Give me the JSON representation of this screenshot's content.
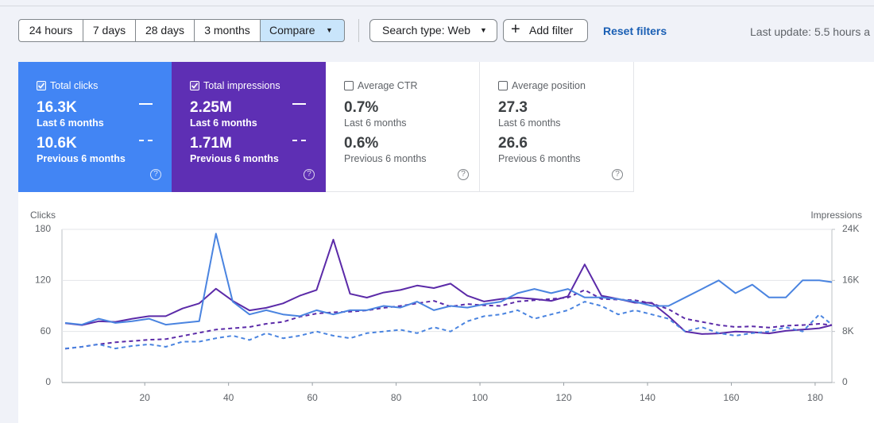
{
  "toolbar": {
    "time_ranges": [
      "24 hours",
      "7 days",
      "28 days",
      "3 months"
    ],
    "compare": "Compare",
    "search_type": "Search type: Web",
    "add_filter": "Add filter",
    "reset_filters": "Reset filters",
    "last_update": "Last update: 5.5 hours a"
  },
  "cards": [
    {
      "title": "Total clicks",
      "checked": true,
      "current": "16.3K",
      "current_period": "Last 6 months",
      "previous": "10.6K",
      "previous_period": "Previous 6 months"
    },
    {
      "title": "Total impressions",
      "checked": true,
      "current": "2.25M",
      "current_period": "Last 6 months",
      "previous": "1.71M",
      "previous_period": "Previous 6 months"
    },
    {
      "title": "Average CTR",
      "checked": false,
      "current": "0.7%",
      "current_period": "Last 6 months",
      "previous": "0.6%",
      "previous_period": "Previous 6 months"
    },
    {
      "title": "Average position",
      "checked": false,
      "current": "27.3",
      "current_period": "Last 6 months",
      "previous": "26.6",
      "previous_period": "Previous 6 months"
    }
  ],
  "chart_data": {
    "type": "line",
    "y_label": "Clicks",
    "y2_label": "Impressions",
    "x": [
      1,
      5,
      9,
      13,
      17,
      21,
      25,
      29,
      33,
      37,
      41,
      45,
      49,
      53,
      57,
      61,
      65,
      69,
      73,
      77,
      81,
      85,
      89,
      93,
      97,
      101,
      105,
      109,
      113,
      117,
      121,
      125,
      129,
      133,
      137,
      141,
      145,
      149,
      153,
      157,
      161,
      165,
      169,
      173,
      177,
      181,
      184
    ],
    "xlim": [
      1,
      184
    ],
    "xticks": [
      20,
      40,
      60,
      80,
      100,
      120,
      140,
      160,
      180
    ],
    "ylim": [
      0,
      180
    ],
    "yticks": [
      0,
      60,
      120,
      180
    ],
    "y2lim": [
      0,
      24000
    ],
    "y2ticks": [
      0,
      {
        "value": 8000,
        "label": "8K"
      },
      {
        "value": 16000,
        "label": "16K"
      },
      {
        "value": 24000,
        "label": "24K"
      }
    ],
    "grid": true,
    "series": [
      {
        "color": "#4a84e0",
        "dashed": false,
        "axis": "y",
        "values": [
          70,
          68,
          75,
          70,
          72,
          75,
          68,
          70,
          72,
          175,
          95,
          80,
          85,
          80,
          78,
          85,
          80,
          85,
          85,
          90,
          88,
          95,
          85,
          90,
          88,
          92,
          95,
          105,
          110,
          105,
          110,
          100,
          100,
          98,
          95,
          90,
          90,
          100,
          110,
          120,
          105,
          115,
          100,
          100,
          120,
          120,
          118
        ]
      },
      {
        "color": "#4a84e0",
        "dashed": true,
        "axis": "y",
        "values": [
          40,
          42,
          45,
          40,
          43,
          45,
          42,
          48,
          48,
          52,
          55,
          50,
          58,
          52,
          55,
          60,
          55,
          52,
          58,
          60,
          62,
          58,
          65,
          60,
          72,
          78,
          80,
          85,
          75,
          80,
          85,
          95,
          90,
          80,
          85,
          80,
          75,
          60,
          65,
          58,
          55,
          58,
          60,
          65,
          60,
          80,
          68
        ]
      },
      {
        "color": "#5b2aa8",
        "dashed": false,
        "axis": "y2",
        "values": [
          9300,
          9000,
          9600,
          9500,
          10000,
          10400,
          10400,
          11600,
          12400,
          14700,
          12800,
          11300,
          11700,
          12400,
          13600,
          14500,
          22400,
          13900,
          13300,
          14100,
          14500,
          15200,
          14800,
          15500,
          13600,
          12700,
          13100,
          13300,
          13100,
          12800,
          13500,
          18500,
          13600,
          13100,
          12500,
          12500,
          10400,
          8000,
          7600,
          7700,
          8000,
          7900,
          7700,
          8100,
          8300,
          8500,
          9000
        ]
      },
      {
        "color": "#5b2aa8",
        "dashed": true,
        "axis": "y2",
        "values": [
          5300,
          5600,
          6000,
          6300,
          6500,
          6700,
          6800,
          7300,
          7800,
          8300,
          8500,
          8700,
          9200,
          9500,
          10300,
          10800,
          11000,
          11100,
          11300,
          11700,
          12000,
          12400,
          12800,
          11900,
          12300,
          12100,
          12000,
          12700,
          12900,
          13100,
          13300,
          14500,
          13100,
          13000,
          12900,
          12400,
          11500,
          10000,
          9500,
          9000,
          8700,
          8800,
          8600,
          8900,
          9000,
          9200,
          9000
        ]
      }
    ]
  }
}
